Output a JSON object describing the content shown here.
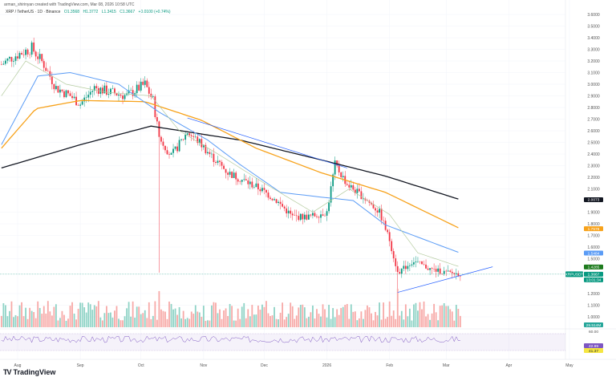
{
  "header": {
    "creator": "arman_shirinyan created with TradingView.com, Mar 08, 2026 10:58 UTC",
    "symbol": "XRP / TetherUS · 1D · Binance",
    "open": "O1.3568",
    "high": "H1.3772",
    "low": "L1.3415",
    "close": "C1.3667",
    "change": "+0.0100 (+0.74%)"
  },
  "logo": "TradingView",
  "colors": {
    "up": "#089981",
    "down": "#f23645",
    "ma200": "#131722",
    "ma100": "#f7a21b",
    "ma50": "#5b9cf6",
    "ma20": "#b5cca0",
    "rsi": "#7e57c2"
  },
  "chart_data": {
    "type": "candlestick",
    "symbol": "XRPUSDT",
    "interval": "1D",
    "y_ticks": [
      "3.6000",
      "3.5000",
      "3.4000",
      "3.3000",
      "3.2000",
      "3.1000",
      "3.0000",
      "2.9000",
      "2.8000",
      "2.7000",
      "2.6000",
      "2.5000",
      "2.4000",
      "2.3000",
      "2.2000",
      "2.1000",
      "1.9000",
      "1.8000",
      "1.7000",
      "1.6000",
      "1.5000",
      "1.2000",
      "1.1000",
      "1.0000"
    ],
    "ylim": [
      0.95,
      3.67
    ],
    "x_ticks": [
      "Aug",
      "Sep",
      "Oct",
      "Nov",
      "Dec",
      "2026",
      "Feb",
      "Mar",
      "Apr",
      "May"
    ],
    "xlim": [
      "2025-07-23",
      "2026-05-31"
    ],
    "price_path": [
      [
        "2025-07-24",
        3.17
      ],
      [
        "2025-07-30",
        3.24
      ],
      [
        "2025-08-08",
        3.31
      ],
      [
        "2025-08-14",
        3.17
      ],
      [
        "2025-08-20",
        2.97
      ],
      [
        "2025-08-27",
        2.9
      ],
      [
        "2025-09-01",
        2.83
      ],
      [
        "2025-09-08",
        2.97
      ],
      [
        "2025-09-16",
        2.93
      ],
      [
        "2025-09-24",
        2.9
      ],
      [
        "2025-10-03",
        3.0
      ],
      [
        "2025-10-07",
        2.86
      ],
      [
        "2025-10-10",
        2.55
      ],
      [
        "2025-10-16",
        2.38
      ],
      [
        "2025-10-24",
        2.59
      ],
      [
        "2025-10-30",
        2.5
      ],
      [
        "2025-11-05",
        2.38
      ],
      [
        "2025-11-13",
        2.24
      ],
      [
        "2025-11-21",
        2.17
      ],
      [
        "2025-11-29",
        2.1
      ],
      [
        "2025-12-07",
        2.0
      ],
      [
        "2025-12-15",
        1.86
      ],
      [
        "2025-12-23",
        1.86
      ],
      [
        "2026-01-01",
        1.9
      ],
      [
        "2026-01-05",
        2.31
      ],
      [
        "2026-01-11",
        2.14
      ],
      [
        "2026-01-19",
        2.03
      ],
      [
        "2026-01-27",
        1.9
      ],
      [
        "2026-02-01",
        1.66
      ],
      [
        "2026-02-05",
        1.38
      ],
      [
        "2026-02-13",
        1.48
      ],
      [
        "2026-02-21",
        1.41
      ],
      [
        "2026-02-29",
        1.38
      ],
      [
        "2026-03-08",
        1.3667
      ]
    ],
    "wicks": [
      {
        "date": "2025-10-10",
        "low": 1.38
      },
      {
        "date": "2026-02-05",
        "low": 1.21
      }
    ],
    "moving_averages": [
      {
        "name": "MA200",
        "last": "2.0073",
        "points": [
          [
            "2025-07-24",
            2.28
          ],
          [
            "2025-09-01",
            2.48
          ],
          [
            "2025-10-06",
            2.64
          ],
          [
            "2025-11-19",
            2.52
          ],
          [
            "2025-12-29",
            2.35
          ],
          [
            "2026-01-30",
            2.21
          ],
          [
            "2026-03-08",
            2.0073
          ]
        ]
      },
      {
        "name": "MA100",
        "last": "1.7578",
        "points": [
          [
            "2025-07-24",
            2.45
          ],
          [
            "2025-08-10",
            2.79
          ],
          [
            "2025-09-01",
            2.86
          ],
          [
            "2025-10-03",
            2.85
          ],
          [
            "2025-10-31",
            2.69
          ],
          [
            "2025-11-27",
            2.45
          ],
          [
            "2025-12-29",
            2.24
          ],
          [
            "2026-01-30",
            2.07
          ],
          [
            "2026-03-08",
            1.7578
          ]
        ]
      },
      {
        "name": "MA50",
        "last": "1.5484",
        "points": [
          [
            "2025-07-24",
            2.48
          ],
          [
            "2025-08-11",
            3.07
          ],
          [
            "2025-08-27",
            3.1
          ],
          [
            "2025-09-20",
            3.0
          ],
          [
            "2025-10-10",
            2.76
          ],
          [
            "2025-11-03",
            2.52
          ],
          [
            "2025-11-19",
            2.31
          ],
          [
            "2025-12-09",
            2.07
          ],
          [
            "2025-12-29",
            2.03
          ],
          [
            "2026-01-14",
            2.0
          ],
          [
            "2026-01-30",
            1.79
          ],
          [
            "2026-03-08",
            1.5484
          ]
        ]
      },
      {
        "name": "MA20",
        "last": "1.4285",
        "points": [
          [
            "2025-07-24",
            2.9
          ],
          [
            "2025-08-05",
            3.2
          ],
          [
            "2025-08-25",
            3.0
          ],
          [
            "2025-09-14",
            2.93
          ],
          [
            "2025-10-06",
            2.9
          ],
          [
            "2025-10-20",
            2.6
          ],
          [
            "2025-11-10",
            2.38
          ],
          [
            "2025-12-01",
            2.15
          ],
          [
            "2025-12-25",
            1.9
          ],
          [
            "2026-01-12",
            2.1
          ],
          [
            "2026-02-01",
            1.88
          ],
          [
            "2026-02-15",
            1.55
          ],
          [
            "2026-03-08",
            1.4285
          ]
        ]
      }
    ],
    "trendlines": [
      {
        "from": [
          "2025-10-24",
          2.71
        ],
        "to": [
          "2026-01-11",
          2.28
        ]
      },
      {
        "from": [
          "2026-02-05",
          1.21
        ],
        "to": [
          "2026-03-24",
          1.43
        ]
      }
    ],
    "last_price": {
      "label": "XRPUSDT",
      "value": "1.3667",
      "countdown": "13:01:34"
    },
    "volume": {
      "last": "29.514M"
    },
    "rsi": {
      "level": "60.00",
      "values": [
        "42.99",
        "41.37"
      ]
    }
  }
}
